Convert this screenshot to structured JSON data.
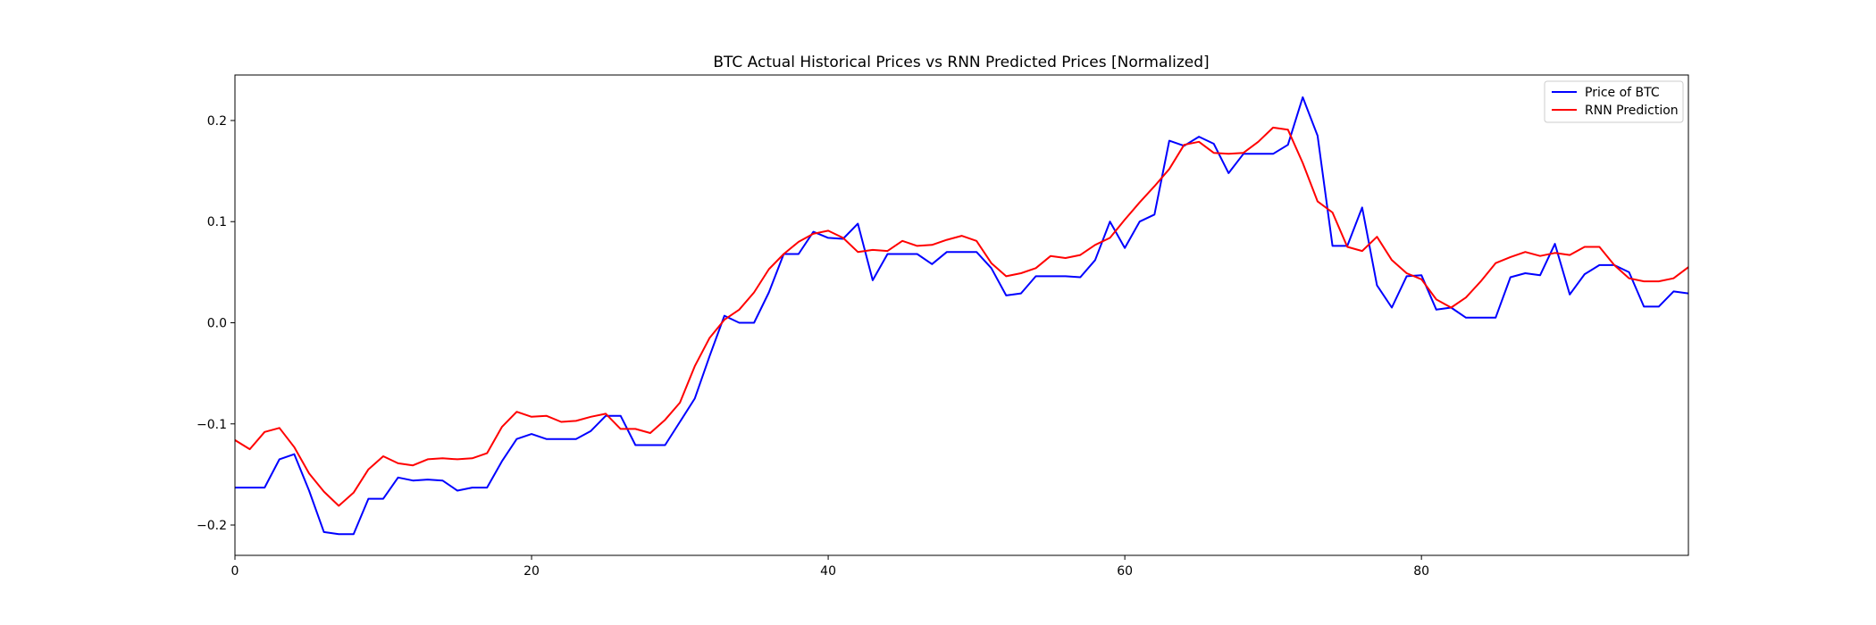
{
  "chart_data": {
    "type": "line",
    "title": "BTC Actual Historical Prices vs RNN Predicted Prices [Normalized]",
    "xlabel": "",
    "ylabel": "",
    "xlim": [
      0,
      98
    ],
    "ylim": [
      -0.23,
      0.245
    ],
    "xticks": [
      0,
      20,
      40,
      60,
      80
    ],
    "yticks": [
      -0.2,
      -0.1,
      0.0,
      0.1,
      0.2
    ],
    "xtick_labels": [
      "0",
      "20",
      "40",
      "60",
      "80"
    ],
    "ytick_labels": [
      "−0.2",
      "−0.1",
      "0.0",
      "0.1",
      "0.2"
    ],
    "grid": false,
    "legend_position": "top-right",
    "series": [
      {
        "name": "Price of BTC",
        "color": "#0000ff",
        "values": [
          -0.163,
          -0.163,
          -0.163,
          -0.135,
          -0.13,
          -0.166,
          -0.207,
          -0.209,
          -0.209,
          -0.174,
          -0.174,
          -0.153,
          -0.156,
          -0.155,
          -0.156,
          -0.166,
          -0.163,
          -0.163,
          -0.137,
          -0.115,
          -0.11,
          -0.115,
          -0.115,
          -0.115,
          -0.107,
          -0.092,
          -0.092,
          -0.121,
          -0.121,
          -0.121,
          -0.098,
          -0.075,
          -0.033,
          0.007,
          0.0,
          0.0,
          0.03,
          0.068,
          0.068,
          0.09,
          0.084,
          0.083,
          0.098,
          0.042,
          0.068,
          0.068,
          0.068,
          0.058,
          0.07,
          0.07,
          0.07,
          0.054,
          0.027,
          0.029,
          0.046,
          0.046,
          0.046,
          0.045,
          0.062,
          0.1,
          0.074,
          0.1,
          0.107,
          0.18,
          0.175,
          0.184,
          0.177,
          0.148,
          0.167,
          0.167,
          0.167,
          0.176,
          0.223,
          0.185,
          0.076,
          0.076,
          0.114,
          0.037,
          0.015,
          0.046,
          0.047,
          0.013,
          0.015,
          0.005,
          0.005,
          0.005,
          0.045,
          0.049,
          0.047,
          0.078,
          0.028,
          0.048,
          0.057,
          0.057,
          0.05,
          0.016,
          0.016,
          0.031,
          0.029,
          0.034
        ]
      },
      {
        "name": "RNN Prediction",
        "color": "#ff0000",
        "values": [
          -0.116,
          -0.125,
          -0.108,
          -0.104,
          -0.123,
          -0.149,
          -0.167,
          -0.181,
          -0.168,
          -0.145,
          -0.132,
          -0.139,
          -0.141,
          -0.135,
          -0.134,
          -0.135,
          -0.134,
          -0.129,
          -0.103,
          -0.088,
          -0.093,
          -0.092,
          -0.098,
          -0.097,
          -0.093,
          -0.09,
          -0.105,
          -0.105,
          -0.109,
          -0.096,
          -0.079,
          -0.043,
          -0.015,
          0.003,
          0.013,
          0.03,
          0.053,
          0.068,
          0.08,
          0.088,
          0.091,
          0.084,
          0.07,
          0.072,
          0.071,
          0.081,
          0.076,
          0.077,
          0.082,
          0.086,
          0.081,
          0.059,
          0.046,
          0.049,
          0.054,
          0.066,
          0.064,
          0.067,
          0.077,
          0.084,
          0.102,
          0.119,
          0.135,
          0.152,
          0.176,
          0.179,
          0.168,
          0.167,
          0.168,
          0.179,
          0.193,
          0.191,
          0.158,
          0.12,
          0.109,
          0.075,
          0.071,
          0.085,
          0.062,
          0.049,
          0.043,
          0.023,
          0.015,
          0.025,
          0.041,
          0.059,
          0.065,
          0.07,
          0.066,
          0.069,
          0.067,
          0.075,
          0.075,
          0.057,
          0.044,
          0.041,
          0.041,
          0.044,
          0.055
        ]
      }
    ]
  }
}
